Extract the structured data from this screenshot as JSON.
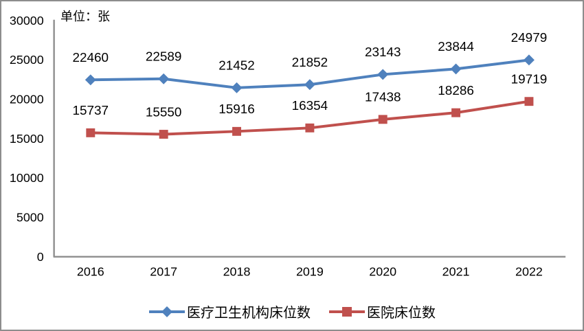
{
  "chart_data": {
    "type": "line",
    "title": "",
    "unit_label": "单位：张",
    "xlabel": "",
    "ylabel": "",
    "categories": [
      "2016",
      "2017",
      "2018",
      "2019",
      "2020",
      "2021",
      "2022"
    ],
    "series": [
      {
        "name": "医疗卫生机构床位数",
        "values": [
          22460,
          22589,
          21452,
          21852,
          23143,
          23844,
          24979
        ],
        "color": "#4F81BD",
        "marker": "diamond"
      },
      {
        "name": "医院床位数",
        "values": [
          15737,
          15550,
          15916,
          16354,
          17438,
          18286,
          19719
        ],
        "color": "#C0504D",
        "marker": "square"
      }
    ],
    "ylim": [
      0,
      30000
    ],
    "yticks": [
      0,
      5000,
      10000,
      15000,
      20000,
      25000,
      30000
    ],
    "grid": false,
    "legend_position": "bottom",
    "axis_color": "#919191",
    "label_color": "#000000"
  }
}
